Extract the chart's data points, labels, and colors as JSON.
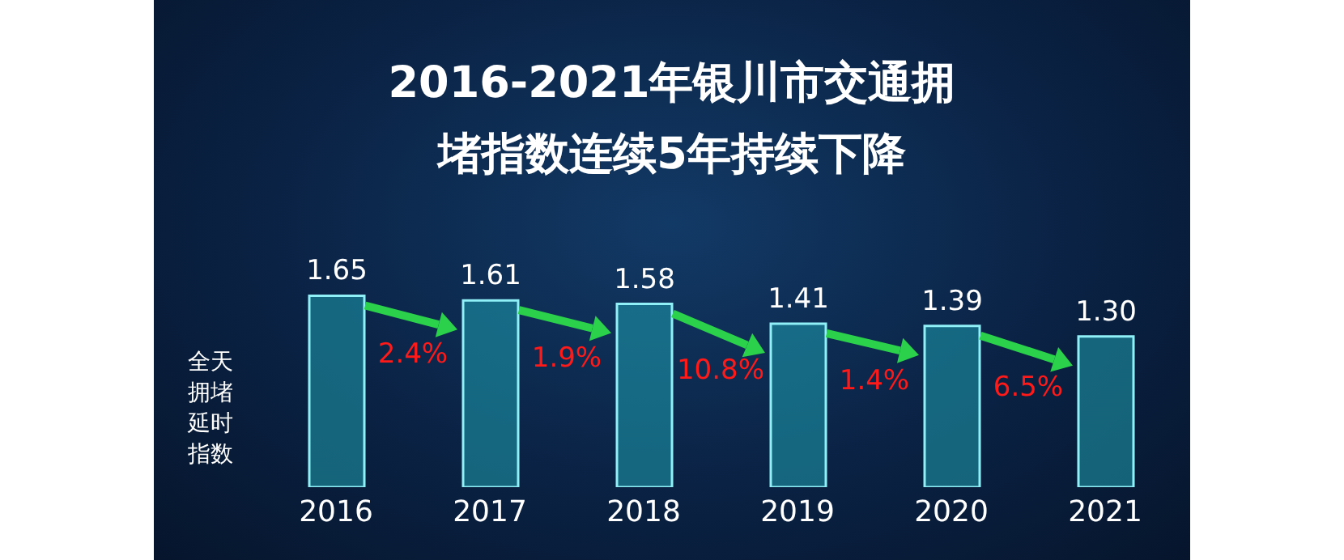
{
  "chart_data": {
    "type": "bar",
    "title": "2016-2021年银川市交通拥堵指数连续5年持续下降",
    "ylabel": "全天拥堵延时指数",
    "categories": [
      "2016",
      "2017",
      "2018",
      "2019",
      "2020",
      "2021"
    ],
    "values": [
      1.65,
      1.61,
      1.58,
      1.41,
      1.39,
      1.3
    ],
    "value_labels": [
      "1.65",
      "1.61",
      "1.58",
      "1.41",
      "1.39",
      "1.30"
    ],
    "color": "#1f9fae",
    "tick_labels": "x",
    "annotations": [
      "2.4%",
      "1.9%",
      "10.8%",
      "1.4%",
      "6.5%"
    ]
  }
}
